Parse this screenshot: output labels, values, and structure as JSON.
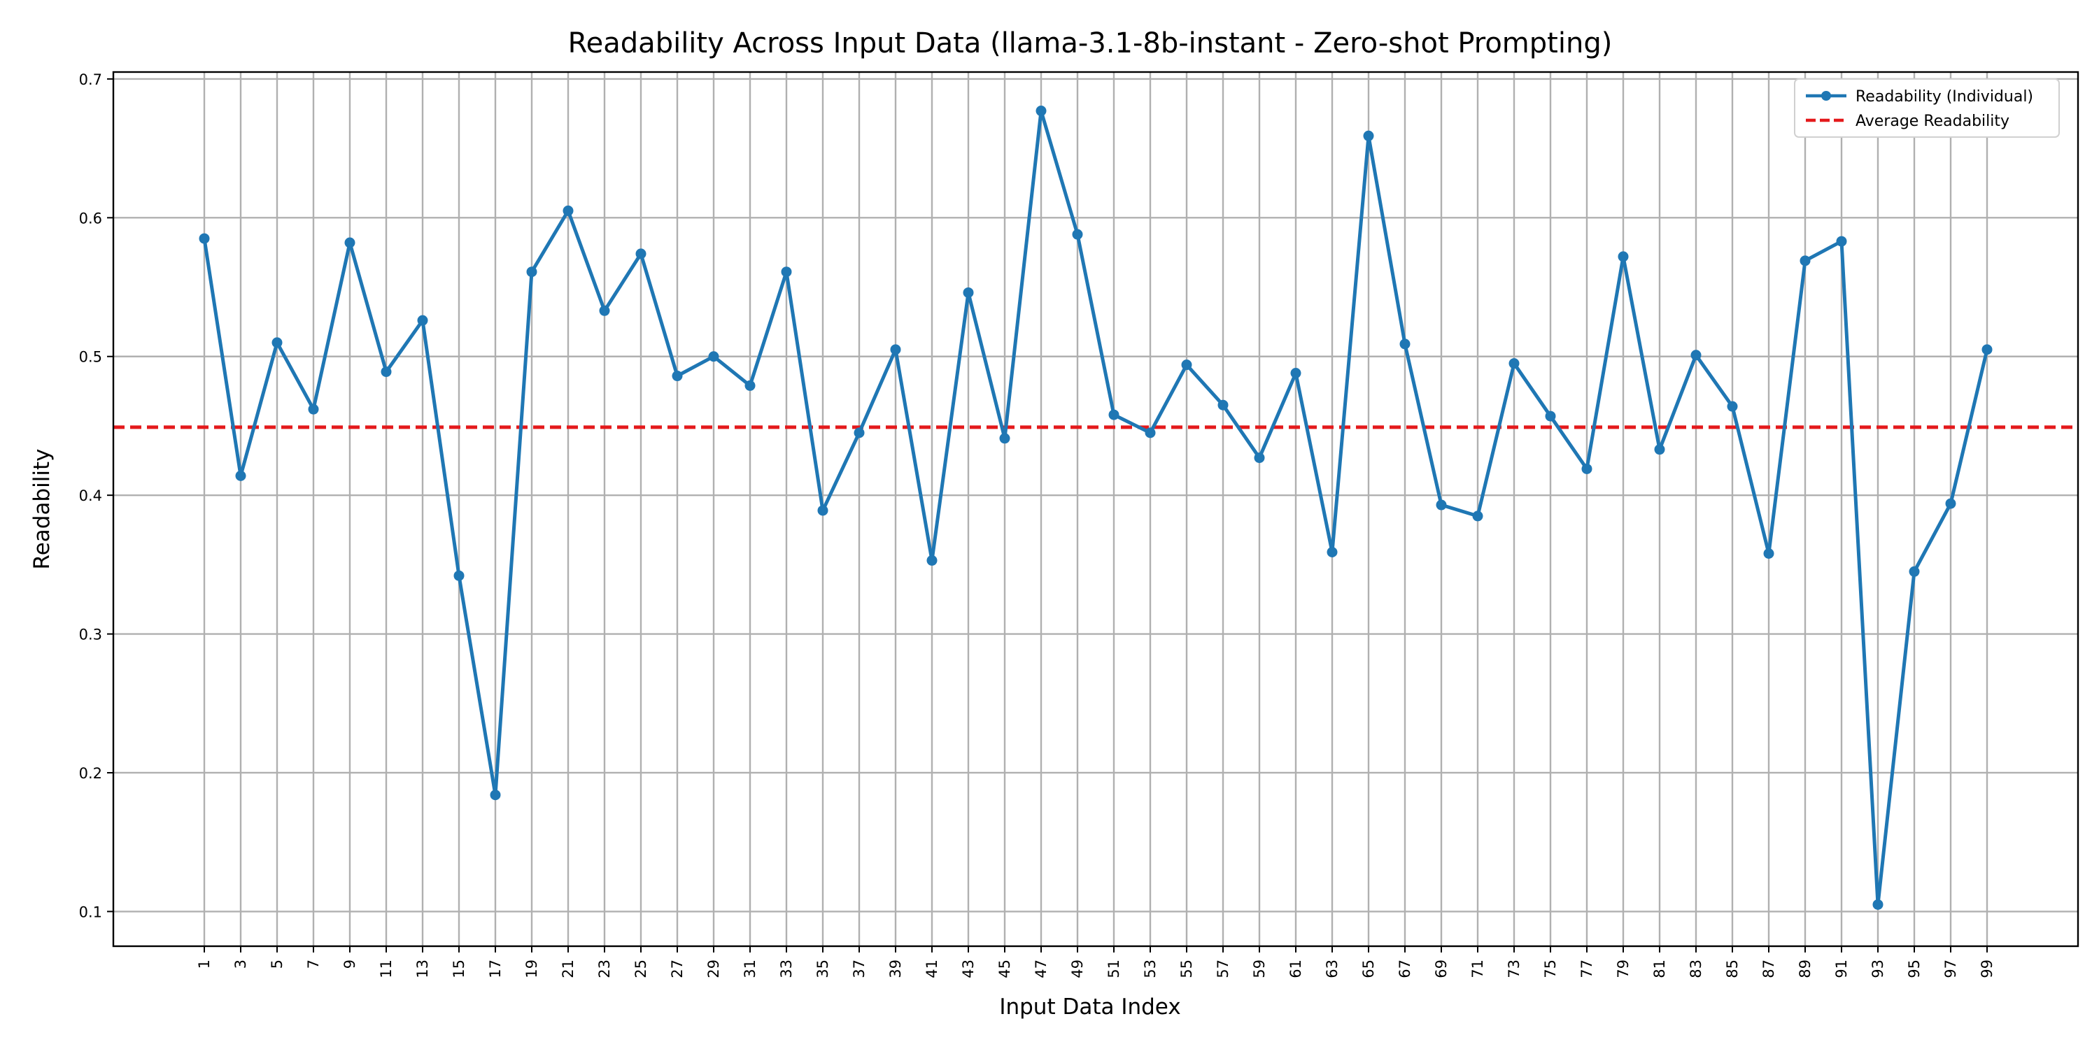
{
  "chart_data": {
    "type": "line",
    "title": "Readability Across Input Data (llama-3.1-8b-instant - Zero-shot Prompting)",
    "xlabel": "Input Data Index",
    "ylabel": "Readability",
    "x": [
      1,
      3,
      5,
      7,
      9,
      11,
      13,
      15,
      17,
      19,
      21,
      23,
      25,
      27,
      29,
      31,
      33,
      35,
      37,
      39,
      41,
      43,
      45,
      47,
      49,
      51,
      53,
      55,
      57,
      59,
      61,
      63,
      65,
      67,
      69,
      71,
      73,
      75,
      77,
      79,
      81,
      83,
      85,
      87,
      89,
      91,
      93,
      95,
      97,
      99
    ],
    "x_ticks": [
      "1",
      "3",
      "5",
      "7",
      "9",
      "11",
      "13",
      "15",
      "17",
      "19",
      "21",
      "23",
      "25",
      "27",
      "29",
      "31",
      "33",
      "35",
      "37",
      "39",
      "41",
      "43",
      "45",
      "47",
      "49",
      "51",
      "53",
      "55",
      "57",
      "59",
      "61",
      "63",
      "65",
      "67",
      "69",
      "71",
      "73",
      "75",
      "77",
      "79",
      "81",
      "83",
      "85",
      "87",
      "89",
      "91",
      "93",
      "95",
      "97",
      "99"
    ],
    "xlim": [
      -4,
      104
    ],
    "ylim": [
      0.075,
      0.705
    ],
    "y_ticks": [
      0.1,
      0.2,
      0.3,
      0.4,
      0.5,
      0.6,
      0.7
    ],
    "y_tick_labels": [
      "0.1",
      "0.2",
      "0.3",
      "0.4",
      "0.5",
      "0.6",
      "0.7"
    ],
    "grid": true,
    "legend_position": "top-right",
    "series": [
      {
        "name": "Readability (Individual)",
        "color": "#1f77b4",
        "style": "solid-with-markers",
        "values": [
          0.585,
          0.414,
          0.51,
          0.462,
          0.582,
          0.489,
          0.526,
          0.342,
          0.184,
          0.561,
          0.605,
          0.533,
          0.574,
          0.486,
          0.5,
          0.479,
          0.561,
          0.389,
          0.445,
          0.505,
          0.353,
          0.546,
          0.441,
          0.677,
          0.588,
          0.458,
          0.445,
          0.494,
          0.465,
          0.427,
          0.488,
          0.359,
          0.659,
          0.509,
          0.393,
          0.385,
          0.495,
          0.457,
          0.419,
          0.572,
          0.433,
          0.501,
          0.464,
          0.358,
          0.569,
          0.583,
          0.105,
          0.345,
          0.394,
          0.505
        ]
      },
      {
        "name": "Average Readability",
        "color": "#e41a1c",
        "style": "dashed",
        "value": 0.449
      }
    ]
  }
}
